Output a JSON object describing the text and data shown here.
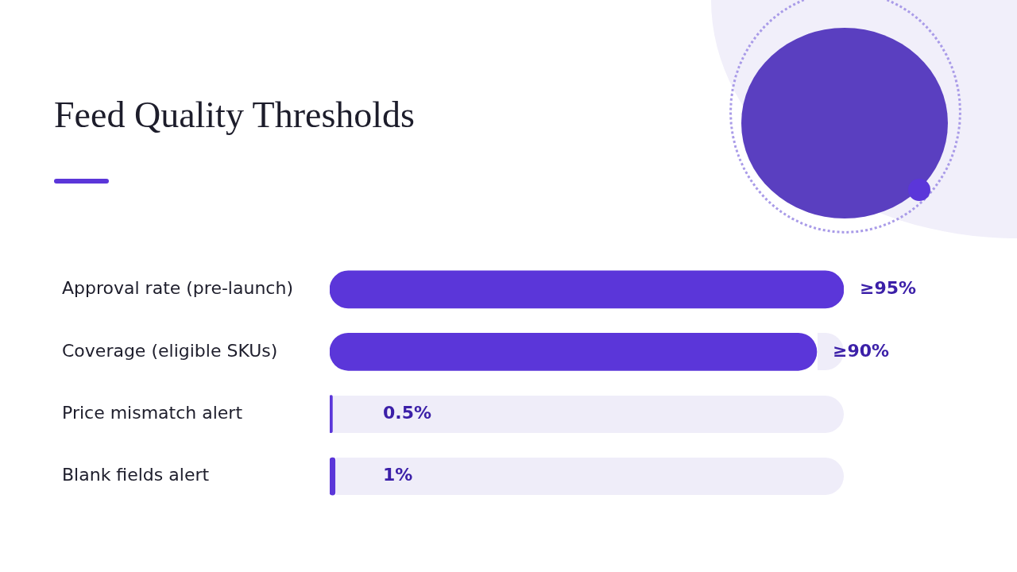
{
  "chart_data": {
    "type": "bar",
    "orientation": "horizontal",
    "title": "Feed Quality Thresholds",
    "categories": [
      "Approval rate (pre-launch)",
      "Coverage (eligible SKUs)",
      "Price mismatch alert",
      "Blank fields alert"
    ],
    "values": [
      95,
      90,
      0.5,
      1
    ],
    "value_labels": [
      "≥95%",
      "≥90%",
      "0.5%",
      "1%"
    ],
    "color": "#5b36d9",
    "grid": false,
    "legend": false,
    "tick_labels": "y"
  }
}
